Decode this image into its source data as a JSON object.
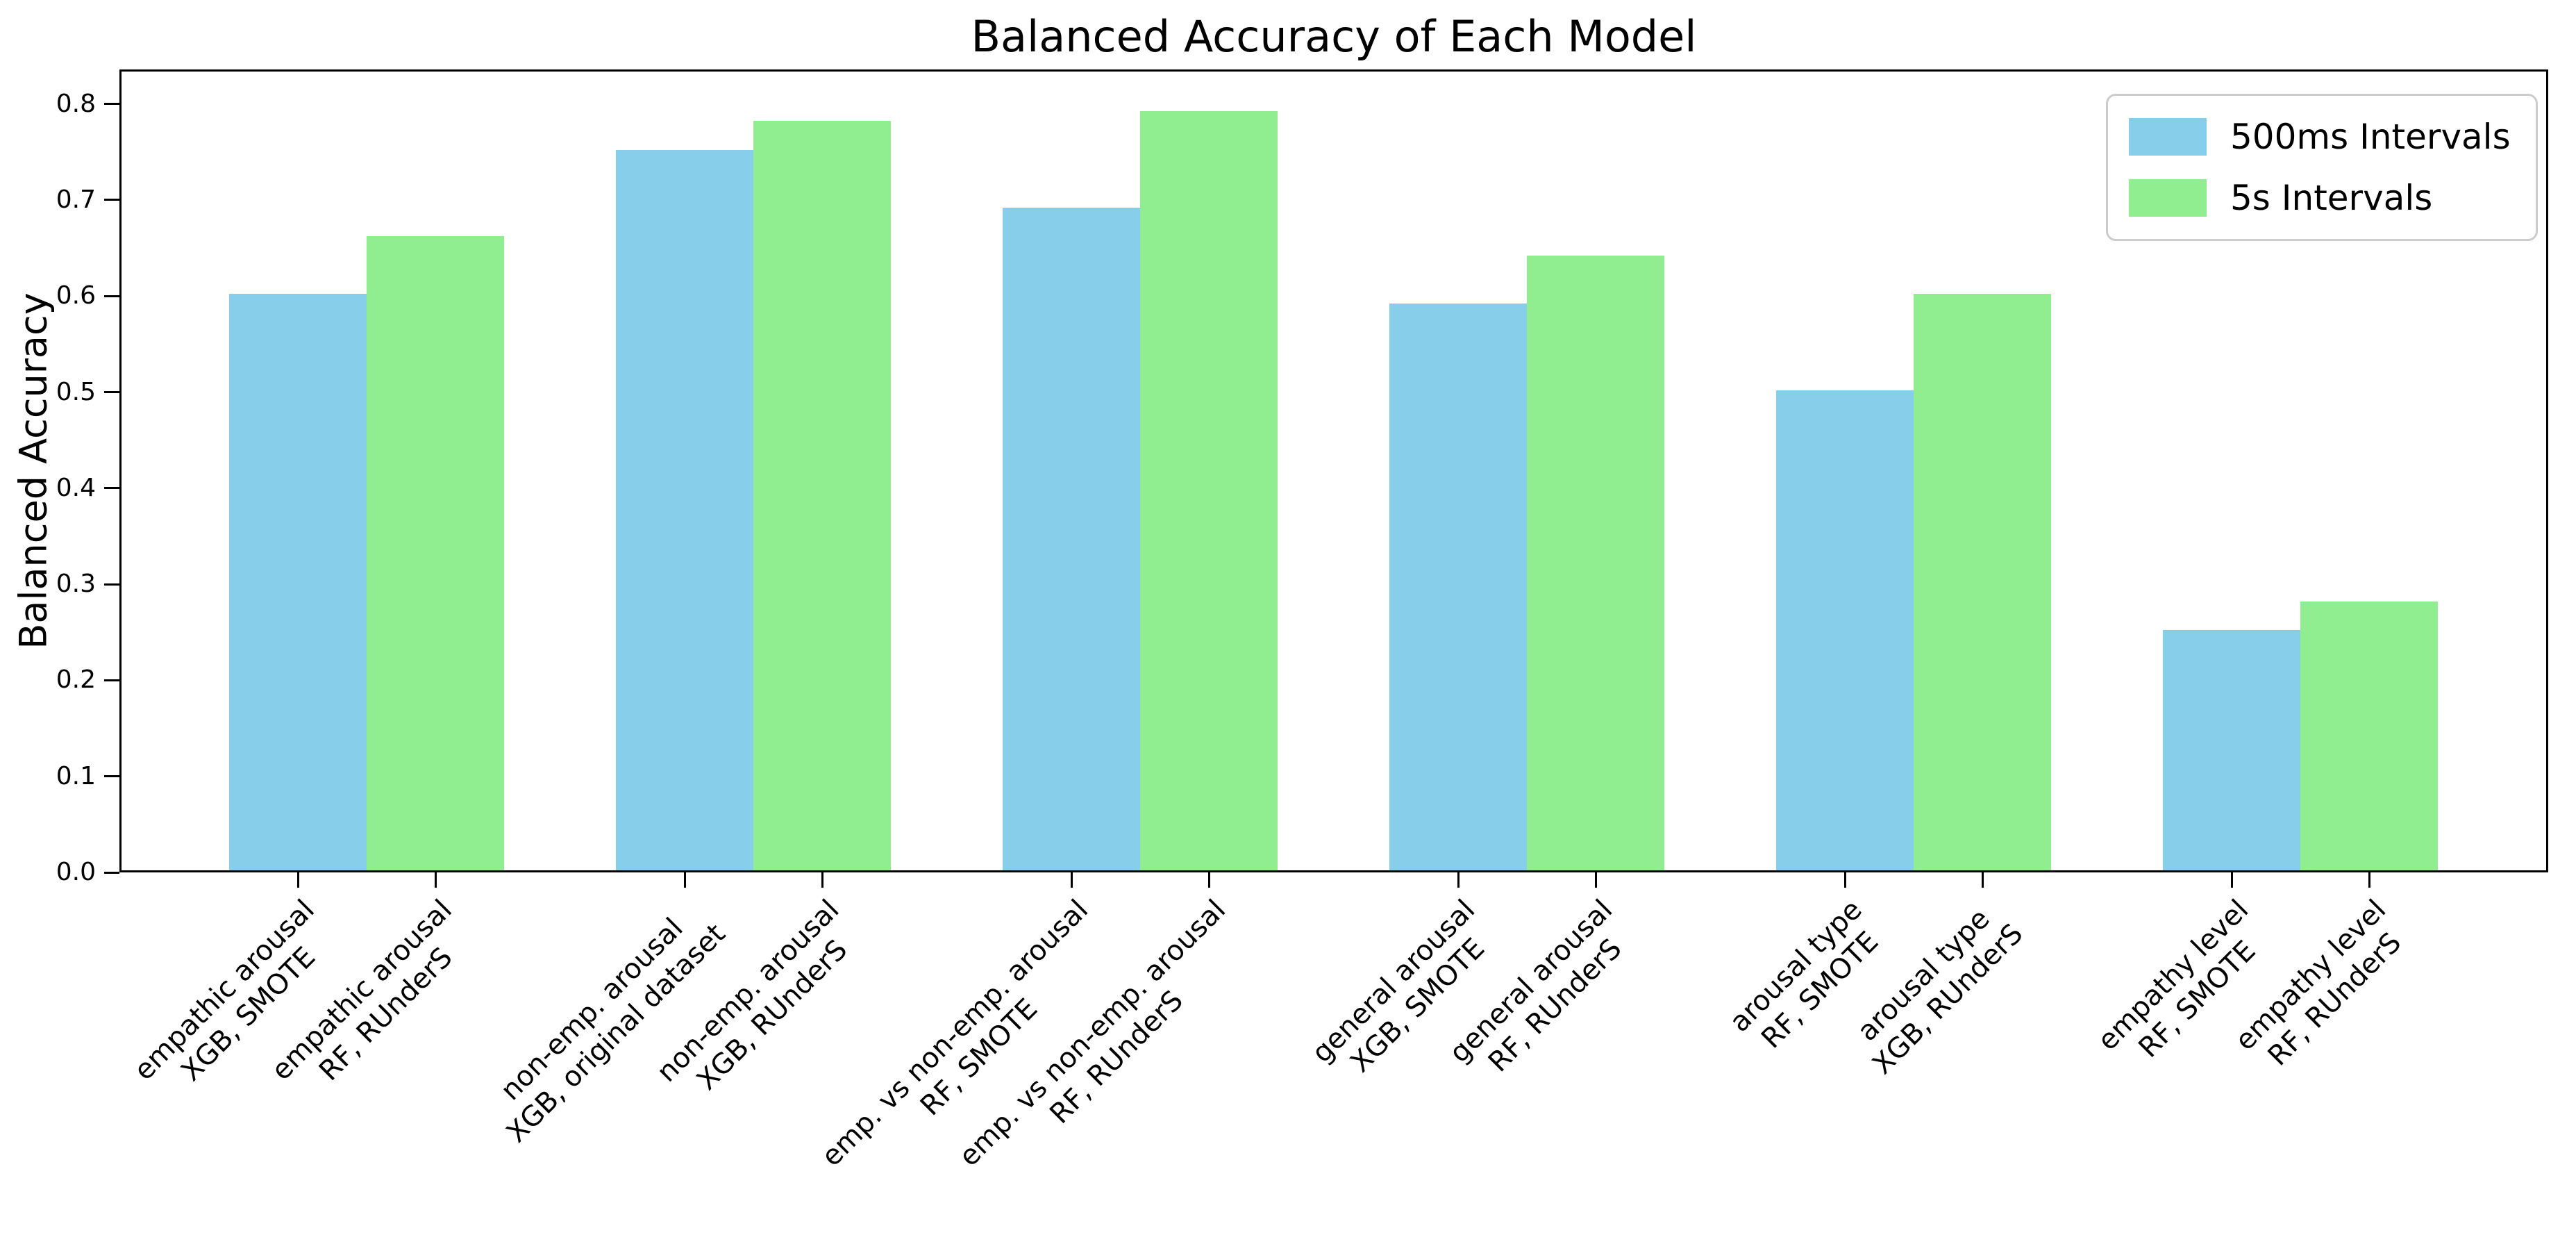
{
  "chart_data": {
    "type": "bar",
    "title": "Balanced Accuracy of Each Model",
    "ylabel": "Balanced Accuracy",
    "xlabel": "",
    "ylim": [
      0.0,
      0.836
    ],
    "yticks": [
      0.0,
      0.1,
      0.2,
      0.3,
      0.4,
      0.5,
      0.6,
      0.7,
      0.8
    ],
    "grid": false,
    "legend_position": "upper right",
    "series": [
      {
        "name": "500ms Intervals",
        "color": "#87CEEB",
        "values": [
          0.6,
          0.75,
          0.69,
          0.59,
          0.5,
          0.25
        ]
      },
      {
        "name": "5s Intervals",
        "color": "#90EE90",
        "values": [
          0.66,
          0.78,
          0.79,
          0.64,
          0.6,
          0.28
        ]
      }
    ],
    "x_tick_labels": [
      [
        "empathic arousal",
        "XGB, SMOTE"
      ],
      [
        "empathic arousal",
        "RF, RUnderS"
      ],
      [
        "non-emp. arousal",
        "XGB, original dataset"
      ],
      [
        "non-emp. arousal",
        "XGB, RUnderS"
      ],
      [
        "emp. vs non-emp. arousal",
        "RF, SMOTE"
      ],
      [
        "emp. vs non-emp. arousal",
        "RF, RUnderS"
      ],
      [
        "general arousal",
        "XGB, SMOTE"
      ],
      [
        "general arousal",
        "RF, RUnderS"
      ],
      [
        "arousal type",
        "RF, SMOTE"
      ],
      [
        "arousal type",
        "XGB, RUnderS"
      ],
      [
        "empathy level",
        "RF, SMOTE"
      ],
      [
        "empathy level",
        "RF, RUnderS"
      ]
    ]
  }
}
